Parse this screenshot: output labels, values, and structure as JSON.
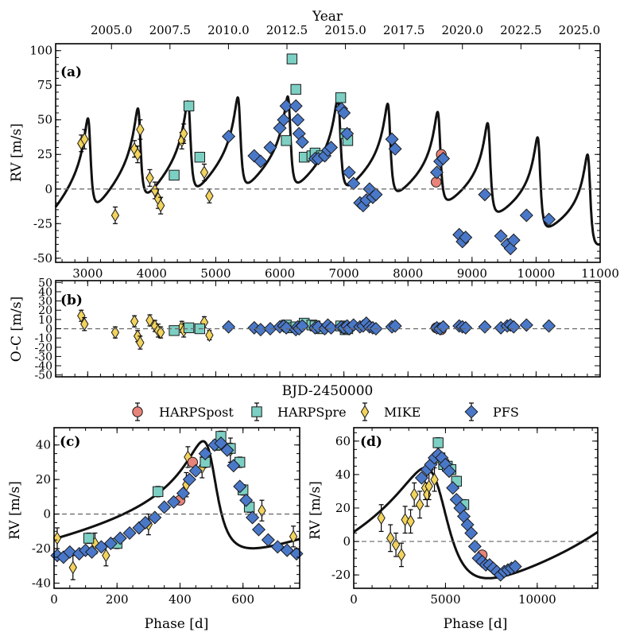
{
  "colors": {
    "HARPSpost": "#e8837a",
    "HARPSpre": "#7ccfc3",
    "MIKE": "#f2d35c",
    "PFS": "#4a78c9"
  },
  "legend": [
    {
      "name": "HARPSpost",
      "marker": "circle"
    },
    {
      "name": "HARPSpre",
      "marker": "square"
    },
    {
      "name": "MIKE",
      "marker": "thin-diamond"
    },
    {
      "name": "PFS",
      "marker": "diamond"
    }
  ],
  "xlabel_shared": "BJD-2450000",
  "chart_data": [
    {
      "id": "a",
      "panel_label": "(a)",
      "type": "scatter",
      "ylabel": "RV [m/s]",
      "xlim": [
        2500,
        11000
      ],
      "ylim": [
        -53,
        105
      ],
      "xticks": [
        3000,
        4000,
        5000,
        6000,
        7000,
        8000,
        9000,
        10000,
        11000
      ],
      "yticks": [
        -50,
        -25,
        0,
        25,
        50,
        75,
        100
      ],
      "top_axis": {
        "label": "Year",
        "ticks": [
          {
            "label": "2005.0",
            "x": 3371.5
          },
          {
            "label": "2007.5",
            "x": 4284.6
          },
          {
            "label": "2010.0",
            "x": 5197.7
          },
          {
            "label": "2012.5",
            "x": 6110.8
          },
          {
            "label": "2015.0",
            "x": 7023.9
          },
          {
            "label": "2017.5",
            "x": 7937.0
          },
          {
            "label": "2020.0",
            "x": 8850.1
          },
          {
            "label": "2022.5",
            "x": 9763.2
          },
          {
            "label": "2025.0",
            "x": 10676.3
          }
        ]
      },
      "model": {
        "kind": "keplerian",
        "period": 780,
        "K": 31,
        "e": 0.58,
        "omega": 0.9,
        "tp": 3030,
        "trend": {
          "t0": 2500,
          "c0": 3,
          "c1": 0.0125,
          "c2": -1.8e-06
        }
      },
      "series": [
        {
          "name": "MIKE",
          "x": [
            2900,
            2950,
            3430,
            3730,
            3780,
            3820,
            3970,
            4050,
            4100,
            4140,
            4470,
            4500,
            4820,
            4900
          ],
          "y": [
            33,
            36,
            -19,
            29,
            25,
            43,
            8,
            -1,
            -7,
            -12,
            35,
            40,
            12,
            -5
          ],
          "err": [
            6,
            7,
            6,
            6,
            6,
            7,
            6,
            6,
            7,
            6,
            6,
            7,
            6,
            5
          ]
        },
        {
          "name": "HARPSpre",
          "x": [
            4350,
            4580,
            4750,
            6100,
            6190,
            6250,
            6380,
            6500,
            6550,
            6650,
            6950,
            7020,
            7060
          ],
          "y": [
            10,
            60,
            23,
            35,
            94,
            72,
            23,
            24,
            26,
            24,
            66,
            40,
            35
          ],
          "err": [
            3,
            3,
            3,
            3,
            3,
            3,
            3,
            3,
            3,
            3,
            3,
            3,
            3
          ]
        },
        {
          "name": "HARPSpost",
          "x": [
            8440,
            8520
          ],
          "y": [
            5,
            25
          ],
          "err": [
            2,
            2
          ]
        },
        {
          "name": "PFS",
          "x": [
            5200,
            5600,
            5700,
            5850,
            6000,
            6060,
            6100,
            6250,
            6280,
            6300,
            6350,
            6550,
            6600,
            6700,
            6750,
            6800,
            6960,
            7000,
            7050,
            7080,
            7150,
            7250,
            7300,
            7350,
            7400,
            7450,
            7500,
            7750,
            7800,
            8450,
            8500,
            8550,
            8800,
            8850,
            8900,
            9200,
            9450,
            9550,
            9600,
            9650,
            9850,
            10200
          ],
          "y": [
            38,
            24,
            20,
            30,
            44,
            50,
            60,
            60,
            50,
            40,
            34,
            22,
            22,
            24,
            28,
            30,
            58,
            55,
            40,
            12,
            4,
            -10,
            -12,
            -8,
            0,
            -6,
            -4,
            36,
            29,
            12,
            20,
            22,
            -33,
            -38,
            -35,
            -4,
            -34,
            -40,
            -43,
            -37,
            -19,
            -22
          ],
          "err": [
            1,
            1,
            1,
            1,
            1,
            1,
            1,
            1,
            1,
            1,
            1,
            1,
            1,
            1,
            1,
            1,
            1,
            1,
            1,
            1,
            1,
            1,
            1,
            1,
            1,
            1,
            1,
            1,
            1,
            1,
            1,
            1,
            1,
            1,
            1,
            1,
            1,
            1,
            1,
            1,
            1,
            1
          ]
        }
      ]
    },
    {
      "id": "b",
      "panel_label": "(b)",
      "type": "scatter",
      "ylabel": "O-C [m/s]",
      "xlim": [
        2500,
        11000
      ],
      "ylim": [
        -52,
        52
      ],
      "yticks": [
        -50,
        -40,
        -30,
        -20,
        -10,
        0,
        10,
        20,
        30,
        40,
        50
      ],
      "series": [
        {
          "name": "MIKE",
          "x": [
            2900,
            2950,
            3430,
            3730,
            3780,
            3820,
            3970,
            4050,
            4100,
            4140,
            4470,
            4500,
            4820,
            4900
          ],
          "y": [
            14,
            5,
            -4,
            8,
            -8,
            -15,
            9,
            3,
            -2,
            -4,
            2,
            -2,
            7,
            -7
          ],
          "err": [
            6,
            7,
            6,
            6,
            6,
            7,
            6,
            6,
            7,
            6,
            6,
            7,
            6,
            5
          ]
        },
        {
          "name": "HARPSpre",
          "x": [
            4350,
            4580,
            4750,
            6100,
            6190,
            6250,
            6380,
            6500,
            6550,
            6650,
            6950,
            7020,
            7060
          ],
          "y": [
            -2,
            1,
            0,
            4,
            1,
            2,
            6,
            4,
            3,
            0,
            3,
            -1,
            0
          ],
          "err": [
            3,
            3,
            3,
            3,
            3,
            3,
            3,
            3,
            3,
            3,
            3,
            3,
            3
          ]
        },
        {
          "name": "HARPSpost",
          "x": [
            8440,
            8520
          ],
          "y": [
            1,
            -1
          ],
          "err": [
            2,
            2
          ]
        },
        {
          "name": "PFS",
          "x": [
            5200,
            5600,
            5700,
            5850,
            6000,
            6060,
            6100,
            6250,
            6280,
            6300,
            6350,
            6550,
            6600,
            6700,
            6750,
            6800,
            6960,
            7000,
            7050,
            7080,
            7150,
            7250,
            7300,
            7350,
            7400,
            7450,
            7500,
            7750,
            7800,
            8450,
            8500,
            8550,
            8800,
            8850,
            8900,
            9200,
            9450,
            9550,
            9600,
            9650,
            9850,
            10200
          ],
          "y": [
            2,
            1,
            -1,
            0,
            2,
            3,
            1,
            -1,
            2,
            0,
            3,
            1,
            2,
            0,
            4,
            1,
            2,
            1,
            3,
            0,
            4,
            2,
            3,
            6,
            2,
            1,
            0,
            2,
            3,
            1,
            0,
            2,
            3,
            2,
            1,
            2,
            1,
            3,
            4,
            2,
            4,
            3
          ],
          "err": [
            1,
            1,
            1,
            1,
            1,
            1,
            1,
            1,
            1,
            1,
            1,
            1,
            1,
            1,
            1,
            1,
            1,
            1,
            1,
            1,
            1,
            1,
            1,
            1,
            1,
            1,
            1,
            1,
            1,
            1,
            1,
            1,
            1,
            1,
            1,
            1,
            1,
            1,
            1,
            1,
            1,
            1
          ]
        }
      ]
    },
    {
      "id": "c",
      "panel_label": "(c)",
      "type": "scatter",
      "xlabel": "Phase [d]",
      "ylabel": "RV [m/s]",
      "xlim": [
        0,
        780
      ],
      "ylim": [
        -43,
        50
      ],
      "xticks": [
        0,
        200,
        400,
        600
      ],
      "yticks": [
        -40,
        -20,
        0,
        20,
        40
      ],
      "model": {
        "kind": "phase",
        "period": 780,
        "K": 31,
        "e": 0.58,
        "omega": 0.9,
        "tp": 500
      },
      "series": [
        {
          "name": "MIKE",
          "x": [
            10,
            60,
            130,
            165,
            300,
            420,
            425,
            470,
            560,
            660,
            760
          ],
          "y": [
            -14,
            -31,
            -17,
            -24,
            -6,
            17,
            33,
            27,
            37,
            2,
            -13
          ],
          "err": [
            6,
            7,
            6,
            6,
            6,
            7,
            6,
            6,
            7,
            6,
            6
          ]
        },
        {
          "name": "HARPSpre",
          "x": [
            110,
            200,
            330,
            480,
            520,
            530,
            560,
            590,
            600,
            620
          ],
          "y": [
            -14,
            -17,
            13,
            30,
            40,
            45,
            38,
            30,
            14,
            4
          ],
          "err": [
            3,
            3,
            3,
            3,
            3,
            3,
            3,
            3,
            3,
            3
          ]
        },
        {
          "name": "HARPSpost",
          "x": [
            400,
            440
          ],
          "y": [
            8,
            30
          ],
          "err": [
            2,
            2
          ]
        },
        {
          "name": "PFS",
          "x": [
            10,
            30,
            50,
            80,
            100,
            120,
            150,
            180,
            210,
            240,
            270,
            290,
            320,
            350,
            380,
            410,
            430,
            450,
            480,
            510,
            530,
            550,
            570,
            590,
            610,
            630,
            650,
            680,
            710,
            740,
            770
          ],
          "y": [
            -24,
            -25,
            -22,
            -23,
            -21,
            -22,
            -19,
            -17,
            -14,
            -11,
            -8,
            -5,
            -2,
            4,
            7,
            12,
            20,
            25,
            35,
            40,
            41,
            37,
            28,
            16,
            8,
            -2,
            -9,
            -15,
            -19,
            -21,
            -23
          ],
          "err": [
            1,
            1,
            1,
            1,
            1,
            1,
            1,
            1,
            1,
            1,
            1,
            1,
            1,
            1,
            1,
            1,
            1,
            1,
            1,
            1,
            1,
            1,
            1,
            1,
            1,
            1,
            1,
            1,
            1,
            1,
            1
          ]
        }
      ]
    },
    {
      "id": "d",
      "panel_label": "(d)",
      "type": "scatter",
      "xlabel": "Phase [d]",
      "ylabel": "RV [m/s]",
      "xlim": [
        0,
        13300
      ],
      "ylim": [
        -28,
        68
      ],
      "xticks": [
        0,
        5000,
        10000
      ],
      "yticks": [
        -20,
        0,
        20,
        40,
        60
      ],
      "model": {
        "kind": "phase",
        "period": 13300,
        "K": 33,
        "e": 0.45,
        "omega": 1.0,
        "tp": 4700,
        "offset": 3
      },
      "series": [
        {
          "name": "MIKE",
          "x": [
            1500,
            2000,
            2300,
            2600,
            2800,
            3100,
            3300,
            3600,
            3900,
            4000,
            4100,
            4400
          ],
          "y": [
            14,
            2,
            -2,
            -8,
            13,
            12,
            28,
            22,
            32,
            28,
            33,
            37
          ],
          "err": [
            8,
            8,
            7,
            7,
            8,
            7,
            7,
            8,
            7,
            7,
            8,
            7
          ]
        },
        {
          "name": "HARPSpre",
          "x": [
            4600,
            4700,
            4900,
            5100,
            5300,
            5600,
            6000
          ],
          "y": [
            59,
            50,
            46,
            45,
            43,
            36,
            22
          ],
          "err": [
            3,
            3,
            3,
            3,
            3,
            3,
            3
          ]
        },
        {
          "name": "HARPSpost",
          "x": [
            7000
          ],
          "y": [
            -8
          ],
          "err": [
            2
          ]
        },
        {
          "name": "PFS",
          "x": [
            3700,
            4000,
            4200,
            4400,
            4600,
            4800,
            5000,
            5200,
            5400,
            5600,
            5800,
            6000,
            6200,
            6400,
            6600,
            6800,
            7000,
            7200,
            7400,
            7600,
            7800,
            8000,
            8200,
            8400,
            8600,
            8800
          ],
          "y": [
            38,
            43,
            46,
            50,
            52,
            50,
            46,
            42,
            32,
            25,
            20,
            15,
            10,
            5,
            -3,
            -10,
            -12,
            -14,
            -14,
            -16,
            -18,
            -20,
            -18,
            -17,
            -16,
            -15
          ],
          "err": [
            1,
            1,
            1,
            1,
            1,
            1,
            1,
            1,
            1,
            1,
            1,
            1,
            1,
            1,
            1,
            1,
            1,
            1,
            1,
            1,
            1,
            1,
            1,
            1,
            1,
            1
          ]
        }
      ]
    }
  ]
}
